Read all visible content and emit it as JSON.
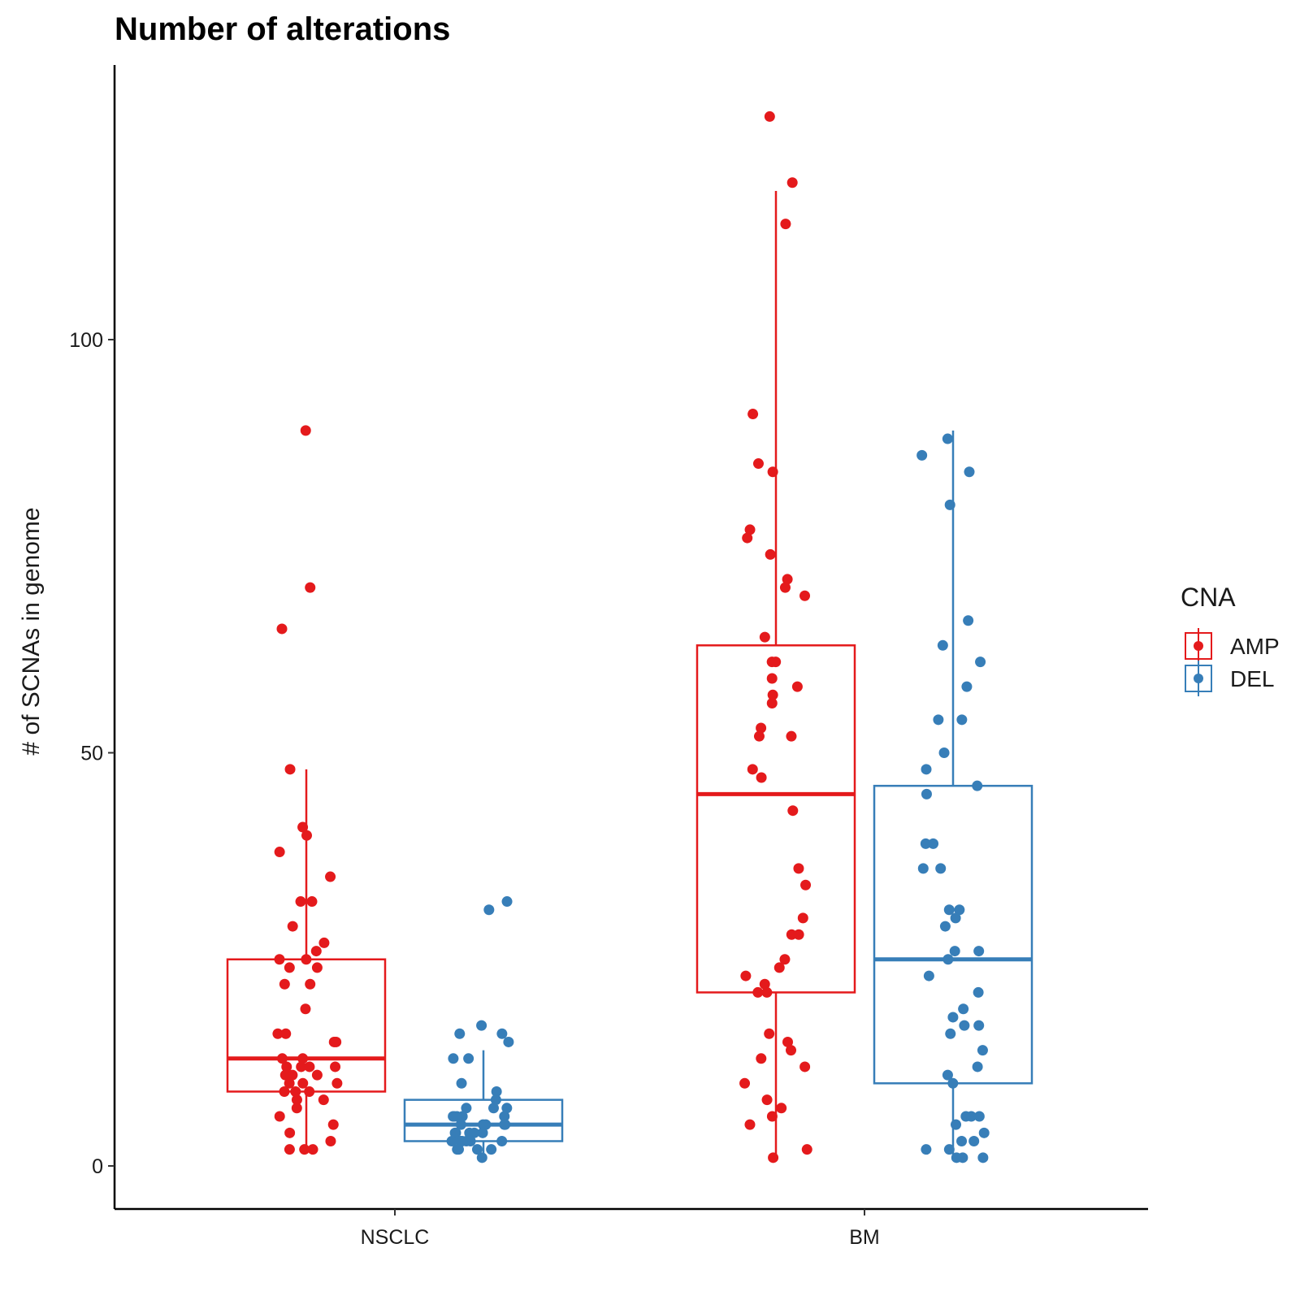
{
  "chart_data": {
    "type": "box",
    "title": "Number of alterations",
    "xlabel": "",
    "ylabel": "# of SCNAs in genome",
    "ylim": [
      -5,
      133
    ],
    "yticks": [
      0,
      50,
      100
    ],
    "categories": [
      "NSCLC",
      "BM"
    ],
    "grid": false,
    "legend": {
      "title": "CNA",
      "placement": "right",
      "entries": [
        {
          "name": "AMP",
          "color": "#e41a1c"
        },
        {
          "name": "DEL",
          "color": "#377eb8"
        }
      ]
    },
    "series": [
      {
        "name": "AMP",
        "color": "#e41a1c",
        "boxes": [
          {
            "category": "NSCLC",
            "whisker_low": 2,
            "q1": 9,
            "median": 13,
            "q3": 25,
            "whisker_high": 48,
            "points": [
              89,
              70,
              65,
              48,
              41,
              40,
              38,
              35,
              32,
              32,
              29,
              27,
              26,
              25,
              25,
              24,
              24,
              22,
              22,
              19,
              16,
              16,
              15,
              15,
              13,
              13,
              12,
              12,
              12,
              12,
              11,
              11,
              11,
              10,
              10,
              10,
              9,
              9,
              9,
              8,
              8,
              7,
              6,
              5,
              4,
              3,
              2,
              2,
              2
            ]
          },
          {
            "category": "BM",
            "whisker_low": 1,
            "q1": 21,
            "median": 45,
            "q3": 63,
            "whisker_high": 118,
            "points": [
              127,
              119,
              114,
              91,
              85,
              84,
              77,
              76,
              74,
              71,
              70,
              69,
              64,
              61,
              61,
              59,
              58,
              57,
              56,
              53,
              52,
              52,
              48,
              47,
              43,
              36,
              34,
              30,
              28,
              28,
              25,
              24,
              23,
              22,
              21,
              21,
              16,
              15,
              14,
              13,
              12,
              10,
              8,
              7,
              6,
              5,
              2,
              1
            ]
          }
        ]
      },
      {
        "name": "DEL",
        "color": "#377eb8",
        "boxes": [
          {
            "category": "NSCLC",
            "whisker_low": 1,
            "q1": 3,
            "median": 5,
            "q3": 8,
            "whisker_high": 14,
            "points": [
              32,
              31,
              17,
              16,
              16,
              15,
              13,
              13,
              10,
              9,
              8,
              7,
              7,
              7,
              6,
              6,
              6,
              6,
              6,
              5,
              5,
              5,
              5,
              5,
              4,
              4,
              4,
              4,
              4,
              3,
              3,
              3,
              3,
              3,
              3,
              2,
              2,
              2,
              2,
              1
            ]
          },
          {
            "category": "BM",
            "whisker_low": 1,
            "q1": 10,
            "median": 25,
            "q3": 46,
            "whisker_high": 89,
            "points": [
              88,
              86,
              84,
              80,
              66,
              63,
              61,
              58,
              54,
              54,
              50,
              48,
              46,
              45,
              39,
              39,
              36,
              36,
              31,
              31,
              29,
              30,
              26,
              26,
              25,
              23,
              21,
              19,
              18,
              17,
              17,
              16,
              14,
              12,
              11,
              10,
              6,
              6,
              6,
              5,
              4,
              3,
              3,
              2,
              2,
              1,
              1,
              1
            ]
          }
        ]
      }
    ]
  }
}
